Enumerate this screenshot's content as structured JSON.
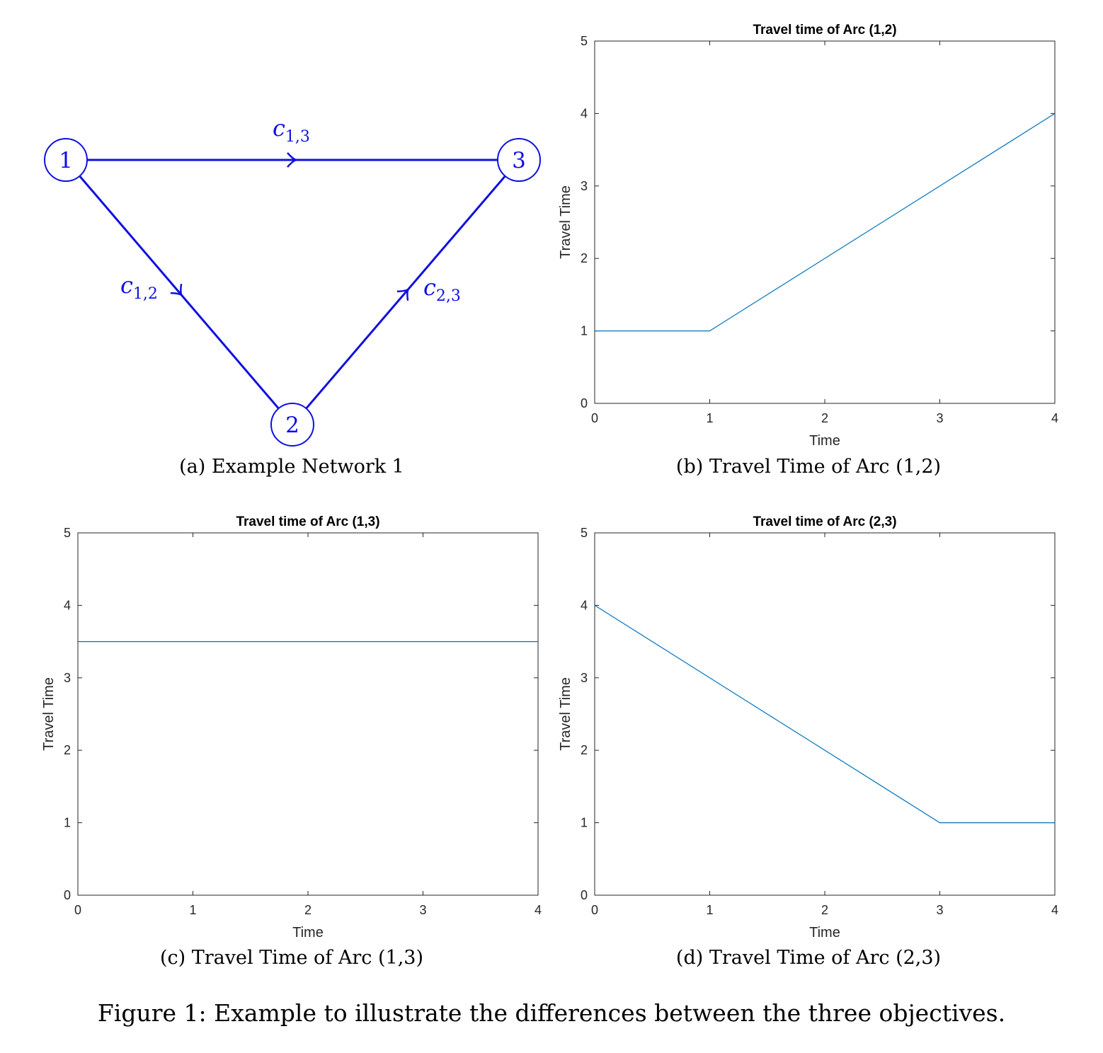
{
  "figure_caption": "Figure 1: Example to illustrate the differences between the three objectives.",
  "network": {
    "caption": "(a) Example Network 1",
    "color": "#1010e0",
    "nodes": [
      {
        "id": "1",
        "label": "1"
      },
      {
        "id": "2",
        "label": "2"
      },
      {
        "id": "3",
        "label": "3"
      }
    ],
    "edges": [
      {
        "from": "1",
        "to": "3",
        "label_base": "c",
        "label_sub": "1,3"
      },
      {
        "from": "1",
        "to": "2",
        "label_base": "c",
        "label_sub": "1,2"
      },
      {
        "from": "2",
        "to": "3",
        "label_base": "c",
        "label_sub": "2,3"
      }
    ]
  },
  "chart_data": [
    {
      "type": "line",
      "title": "Travel time of Arc (1,2)",
      "caption": "(b) Travel Time of Arc (1,2)",
      "xlabel": "Time",
      "ylabel": "Travel Time",
      "xlim": [
        0,
        4
      ],
      "ylim": [
        0,
        5
      ],
      "xticks": [
        0,
        1,
        2,
        3,
        4
      ],
      "yticks": [
        0,
        1,
        2,
        3,
        4,
        5
      ],
      "color": "#0072bd",
      "series": [
        {
          "x": [
            0,
            1,
            4
          ],
          "y": [
            1,
            1,
            4
          ]
        }
      ]
    },
    {
      "type": "line",
      "title": "Travel time of Arc (1,3)",
      "caption": "(c) Travel Time of Arc (1,3)",
      "xlabel": "Time",
      "ylabel": "Travel Time",
      "xlim": [
        0,
        4
      ],
      "ylim": [
        0,
        5
      ],
      "xticks": [
        0,
        1,
        2,
        3,
        4
      ],
      "yticks": [
        0,
        1,
        2,
        3,
        4,
        5
      ],
      "color": "#0072bd",
      "series": [
        {
          "x": [
            0,
            4
          ],
          "y": [
            3.5,
            3.5
          ]
        }
      ]
    },
    {
      "type": "line",
      "title": "Travel time of Arc (2,3)",
      "caption": "(d) Travel Time of Arc (2,3)",
      "xlabel": "Time",
      "ylabel": "Travel Time",
      "xlim": [
        0,
        4
      ],
      "ylim": [
        0,
        5
      ],
      "xticks": [
        0,
        1,
        2,
        3,
        4
      ],
      "yticks": [
        0,
        1,
        2,
        3,
        4,
        5
      ],
      "color": "#0072bd",
      "series": [
        {
          "x": [
            0,
            3,
            4
          ],
          "y": [
            4,
            1,
            1
          ]
        }
      ]
    }
  ]
}
